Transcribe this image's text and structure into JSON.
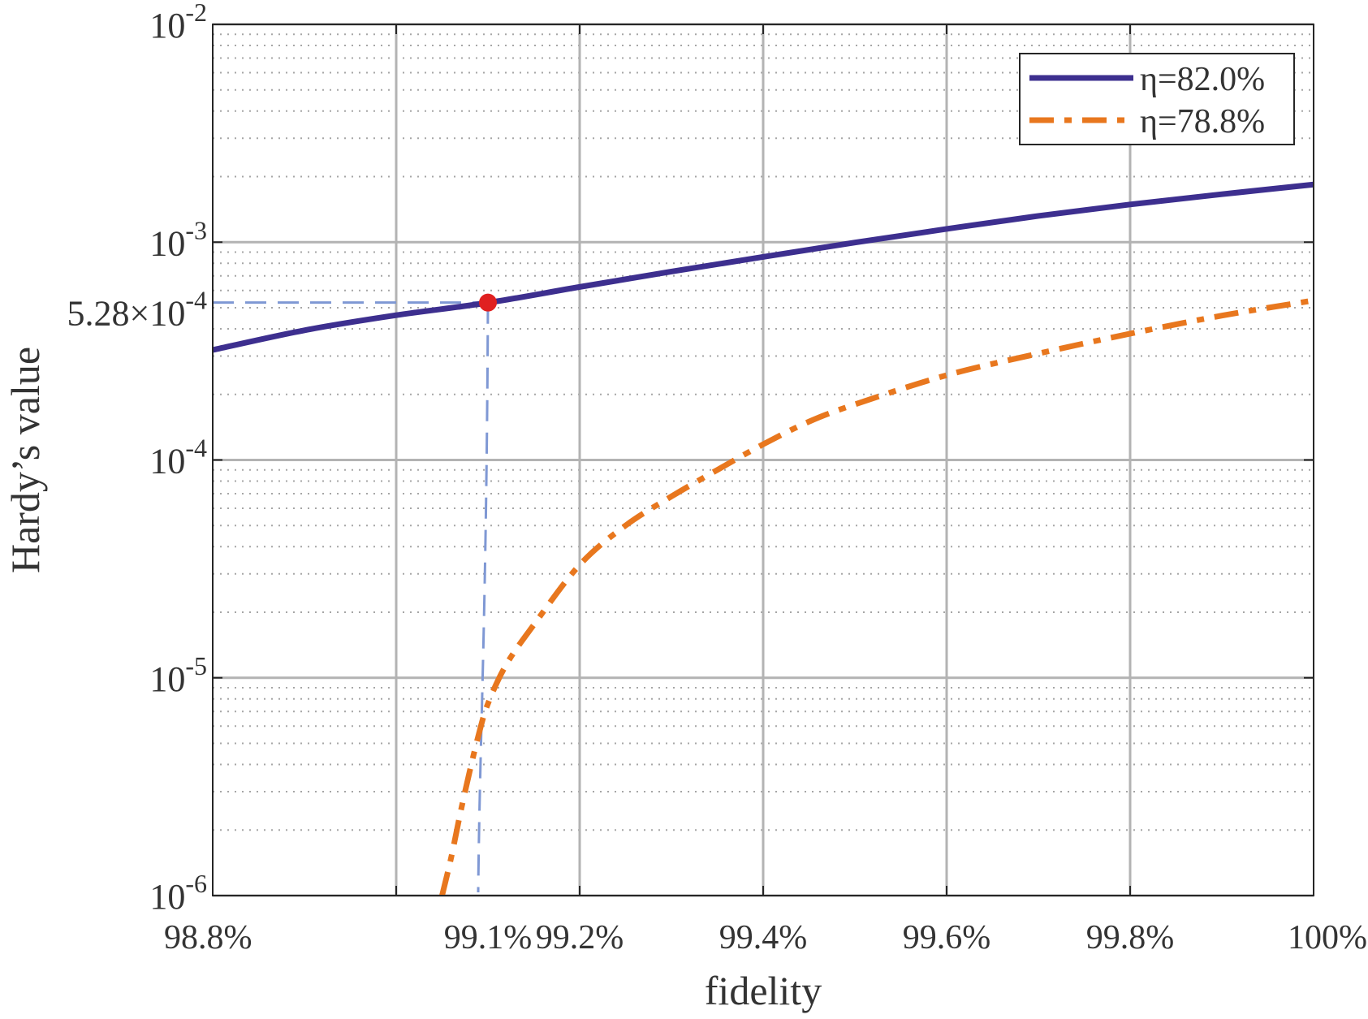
{
  "chart_data": {
    "type": "line",
    "xlabel": "fidelity",
    "ylabel": "Hardy’s value",
    "xscale": "linear",
    "yscale": "log",
    "xlim": [
      98.8,
      100
    ],
    "ylim": [
      1e-06,
      0.01
    ],
    "grid": true,
    "minor_grid": true,
    "legend_position": "top-right",
    "x_ticks": [
      {
        "value": 98.8,
        "label": "98.8%"
      },
      {
        "value": 99.1,
        "label": "99.1%"
      },
      {
        "value": 99.2,
        "label": "99.2%"
      },
      {
        "value": 99.4,
        "label": "99.4%"
      },
      {
        "value": 99.6,
        "label": "99.6%"
      },
      {
        "value": 99.8,
        "label": "99.8%"
      },
      {
        "value": 100,
        "label": "100%"
      }
    ],
    "y_ticks": [
      {
        "value": 0.01,
        "base": "10",
        "exp": "-2"
      },
      {
        "value": 0.001,
        "base": "10",
        "exp": "-3"
      },
      {
        "value": 0.0001,
        "base": "10",
        "exp": "-4"
      },
      {
        "value": 1e-05,
        "base": "10",
        "exp": "-5"
      },
      {
        "value": 1e-06,
        "base": "10",
        "exp": "-6"
      }
    ],
    "series": [
      {
        "name": "η=82.0%",
        "color": "#3d2f8f",
        "style": "solid",
        "x": [
          98.8,
          98.9,
          99.0,
          99.1,
          99.2,
          99.3,
          99.4,
          99.5,
          99.6,
          99.7,
          99.8,
          99.9,
          100.0
        ],
        "y": [
          0.00032,
          0.000394,
          0.000462,
          0.000527,
          0.000623,
          0.000733,
          0.000856,
          0.000996,
          0.00115,
          0.00132,
          0.00149,
          0.00166,
          0.00184
        ]
      },
      {
        "name": "η=78.8%",
        "color": "#e8771e",
        "style": "dashdot",
        "x": [
          99.05,
          99.06,
          99.07,
          99.08,
          99.09,
          99.1,
          99.12,
          99.15,
          99.2,
          99.25,
          99.3,
          99.35,
          99.4,
          99.45,
          99.5,
          99.6,
          99.7,
          99.8,
          99.9,
          100.0
        ],
        "y": [
          1e-06,
          1.5e-06,
          2.4e-06,
          3.7e-06,
          5.5e-06,
          7.6e-06,
          1.15e-05,
          1.75e-05,
          3.3e-05,
          5e-05,
          6.8e-05,
          9e-05,
          0.000118,
          0.00015,
          0.00018,
          0.000245,
          0.000308,
          0.00038,
          0.00046,
          0.00054
        ]
      }
    ],
    "highlight_point": {
      "x": 99.1,
      "y": 0.000528,
      "label": "5.28×10",
      "label_exp": "-4",
      "color": "#e02020",
      "guide_color": "#7f98d4"
    }
  }
}
